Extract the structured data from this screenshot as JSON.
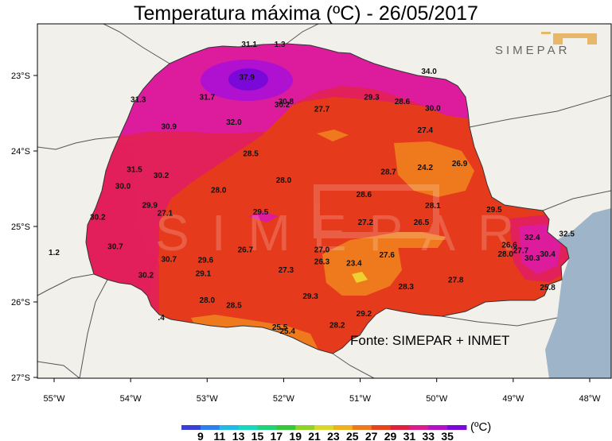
{
  "title": "Temperatura máxima (ºC) - 26/05/2017",
  "source": "Fonte: SIMEPAR + INMET",
  "logo": "SIMEPAR",
  "unit": "(ºC)",
  "lat_labels": [
    "23°S",
    "24°S",
    "25°S",
    "26°S",
    "27°S"
  ],
  "lon_labels": [
    "55°W",
    "54°W",
    "53°W",
    "52°W",
    "51°W",
    "50°W",
    "49°W",
    "48°W"
  ],
  "colorbar": {
    "ticks": [
      "9",
      "11",
      "13",
      "15",
      "17",
      "19",
      "21",
      "23",
      "25",
      "27",
      "29",
      "31",
      "33",
      "35"
    ],
    "colors": [
      "#3b3fd6",
      "#2f7df0",
      "#22b8e8",
      "#19d6c0",
      "#22d27a",
      "#37c83a",
      "#8fd22a",
      "#d8d82a",
      "#f0b020",
      "#ee7a1e",
      "#e8441c",
      "#e0203c",
      "#dc1c8c",
      "#b410c8",
      "#7a08d8"
    ]
  },
  "colors": {
    "background": "#f2f0ea",
    "ocean": "#9eb4c8",
    "t27": "#ef7a1e",
    "t29": "#e63a1c",
    "t31": "#e2205a",
    "t33": "#dc1c9c",
    "t35": "#b010d0",
    "t37": "#7a08d8",
    "t25": "#f0a828",
    "t23": "#f0d030"
  },
  "stations": [
    {
      "v": "31.1",
      "lon": -52.45,
      "lat": -22.62
    },
    {
      "v": "37.9",
      "lon": -52.48,
      "lat": -23.06
    },
    {
      "v": "31.3",
      "lon": -53.9,
      "lat": -23.35
    },
    {
      "v": "31.7",
      "lon": -53.0,
      "lat": -23.32
    },
    {
      "v": "30.8",
      "lon": -51.97,
      "lat": -23.38
    },
    {
      "v": "30.2",
      "lon": -52.02,
      "lat": -23.42
    },
    {
      "v": "29.3",
      "lon": -50.85,
      "lat": -23.32
    },
    {
      "v": "28.6",
      "lon": -50.45,
      "lat": -23.38
    },
    {
      "v": "30.0",
      "lon": -50.05,
      "lat": -23.47
    },
    {
      "v": "27.7",
      "lon": -51.5,
      "lat": -23.48
    },
    {
      "v": "30.9",
      "lon": -53.5,
      "lat": -23.71
    },
    {
      "v": "32.0",
      "lon": -52.65,
      "lat": -23.65
    },
    {
      "v": "27.4",
      "lon": -50.15,
      "lat": -23.76
    },
    {
      "v": "28.5",
      "lon": -52.43,
      "lat": -24.07
    },
    {
      "v": "31.5",
      "lon": -53.95,
      "lat": -24.28
    },
    {
      "v": "30.2",
      "lon": -53.6,
      "lat": -24.36
    },
    {
      "v": "28.0",
      "lon": -52.0,
      "lat": -24.42
    },
    {
      "v": "28.7",
      "lon": -50.63,
      "lat": -24.31
    },
    {
      "v": "24.2",
      "lon": -50.15,
      "lat": -24.25
    },
    {
      "v": "26.9",
      "lon": -49.7,
      "lat": -24.2
    },
    {
      "v": "30.0",
      "lon": -54.1,
      "lat": -24.5
    },
    {
      "v": "28.0",
      "lon": -52.85,
      "lat": -24.55
    },
    {
      "v": "28.6",
      "lon": -50.95,
      "lat": -24.61
    },
    {
      "v": "29.9",
      "lon": -53.75,
      "lat": -24.75
    },
    {
      "v": "27.1",
      "lon": -53.55,
      "lat": -24.86
    },
    {
      "v": "28.1",
      "lon": -50.05,
      "lat": -24.76
    },
    {
      "v": "29.5",
      "lon": -49.25,
      "lat": -24.81
    },
    {
      "v": "30.2",
      "lon": -54.43,
      "lat": -24.91
    },
    {
      "v": "29.5",
      "lon": -52.3,
      "lat": -24.84
    },
    {
      "v": "27.2",
      "lon": -50.93,
      "lat": -24.98
    },
    {
      "v": "26.5",
      "lon": -50.2,
      "lat": -24.98
    },
    {
      "v": "32.4",
      "lon": -48.75,
      "lat": -25.18
    },
    {
      "v": "32.5",
      "lon": -48.3,
      "lat": -25.13
    },
    {
      "v": "30.7",
      "lon": -54.2,
      "lat": -25.3
    },
    {
      "v": "26.7",
      "lon": -52.5,
      "lat": -25.34
    },
    {
      "v": "27.0",
      "lon": -51.5,
      "lat": -25.34
    },
    {
      "v": "27.6",
      "lon": -50.65,
      "lat": -25.41
    },
    {
      "v": "26.6",
      "lon": -49.05,
      "lat": -25.28
    },
    {
      "v": "27.7",
      "lon": -48.9,
      "lat": -25.35
    },
    {
      "v": "28.0",
      "lon": -49.1,
      "lat": -25.4
    },
    {
      "v": "30.3",
      "lon": -48.75,
      "lat": -25.45
    },
    {
      "v": "30.4",
      "lon": -48.55,
      "lat": -25.4
    },
    {
      "v": "1.2",
      "lon": -55.0,
      "lat": -25.38
    },
    {
      "v": "30.7",
      "lon": -53.5,
      "lat": -25.47
    },
    {
      "v": "29.6",
      "lon": -53.02,
      "lat": -25.48
    },
    {
      "v": "26.3",
      "lon": -51.5,
      "lat": -25.5
    },
    {
      "v": "23.4",
      "lon": -51.08,
      "lat": -25.52
    },
    {
      "v": "27.3",
      "lon": -51.97,
      "lat": -25.61
    },
    {
      "v": "29.1",
      "lon": -53.05,
      "lat": -25.66
    },
    {
      "v": "30.2",
      "lon": -53.8,
      "lat": -25.68
    },
    {
      "v": "27.8",
      "lon": -49.75,
      "lat": -25.74
    },
    {
      "v": "28.3",
      "lon": -50.4,
      "lat": -25.83
    },
    {
      "v": "25.8",
      "lon": -48.55,
      "lat": -25.84
    },
    {
      "v": "29.3",
      "lon": -51.65,
      "lat": -25.96
    },
    {
      "v": "28.0",
      "lon": -53.0,
      "lat": -26.01
    },
    {
      "v": "28.5",
      "lon": -52.65,
      "lat": -26.08
    },
    {
      "v": "29.2",
      "lon": -50.95,
      "lat": -26.19
    },
    {
      "v": ".4",
      "lon": -53.6,
      "lat": -26.24
    },
    {
      "v": "28.2",
      "lon": -51.3,
      "lat": -26.34
    },
    {
      "v": "25.5",
      "lon": -52.05,
      "lat": -26.37
    },
    {
      "v": "25.4",
      "lon": -51.95,
      "lat": -26.42
    },
    {
      "v": "34.0",
      "lon": -50.1,
      "lat": -22.98
    },
    {
      "v": "1.3",
      "lon": -52.05,
      "lat": -22.62
    }
  ]
}
